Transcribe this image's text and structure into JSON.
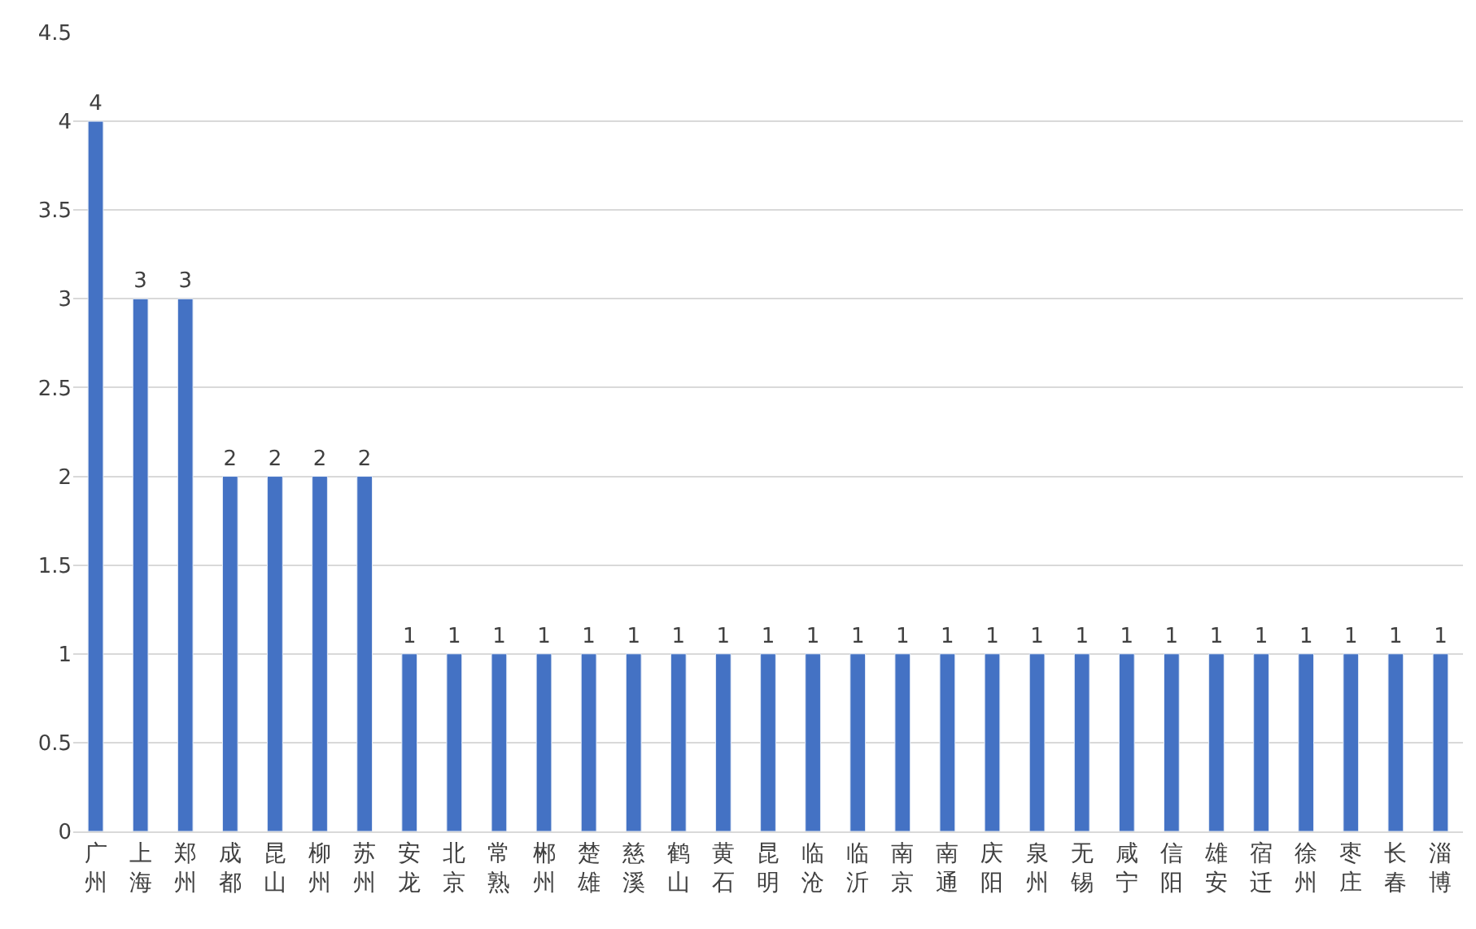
{
  "chart_data": {
    "type": "bar",
    "categories": [
      "广州",
      "上海",
      "郑州",
      "成都",
      "昆山",
      "柳州",
      "苏州",
      "安龙",
      "北京",
      "常熟",
      "郴州",
      "楚雄",
      "慈溪",
      "鹤山",
      "黄石",
      "昆明",
      "临沧",
      "临沂",
      "南京",
      "南通",
      "庆阳",
      "泉州",
      "无锡",
      "咸宁",
      "信阳",
      "雄安",
      "宿迁",
      "徐州",
      "枣庄",
      "长春",
      "淄博"
    ],
    "values": [
      4,
      3,
      3,
      2,
      2,
      2,
      2,
      1,
      1,
      1,
      1,
      1,
      1,
      1,
      1,
      1,
      1,
      1,
      1,
      1,
      1,
      1,
      1,
      1,
      1,
      1,
      1,
      1,
      1,
      1,
      1
    ],
    "color": "#4472c4",
    "ylim": [
      0,
      4.5
    ],
    "yticks": [
      0,
      0.5,
      1,
      1.5,
      2,
      2.5,
      3,
      3.5,
      4,
      4.5
    ],
    "grid": "y",
    "data_labels": true,
    "legend": false
  }
}
